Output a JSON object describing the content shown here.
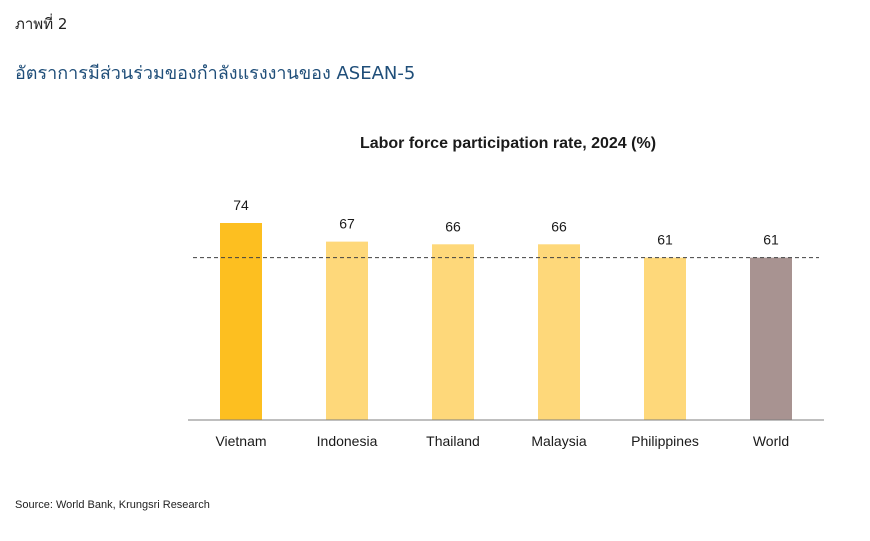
{
  "figure_label": "ภาพที่ 2",
  "figure_title": "อัตราการมีส่วนร่วมของกำลังแรงงานของ  ASEAN-5",
  "source": "Source: World Bank, Krungsri Research",
  "chart_data": {
    "type": "bar",
    "title": "Labor force participation rate, 2024 (%)",
    "categories": [
      "Vietnam",
      "Indonesia",
      "Thailand",
      "Malaysia",
      "Philippines",
      "World"
    ],
    "values": [
      74,
      67,
      66,
      66,
      61,
      61
    ],
    "data_labels": [
      "74",
      "67",
      "66",
      "66",
      "61",
      "61"
    ],
    "colors": [
      "#FDBF20",
      "#FED87A",
      "#FED87A",
      "#FED87A",
      "#FED87A",
      "#A89391"
    ],
    "reference_line": {
      "value": 61,
      "style": "dashed"
    },
    "ylim": [
      0,
      80
    ],
    "grid": false,
    "legend": "none"
  }
}
